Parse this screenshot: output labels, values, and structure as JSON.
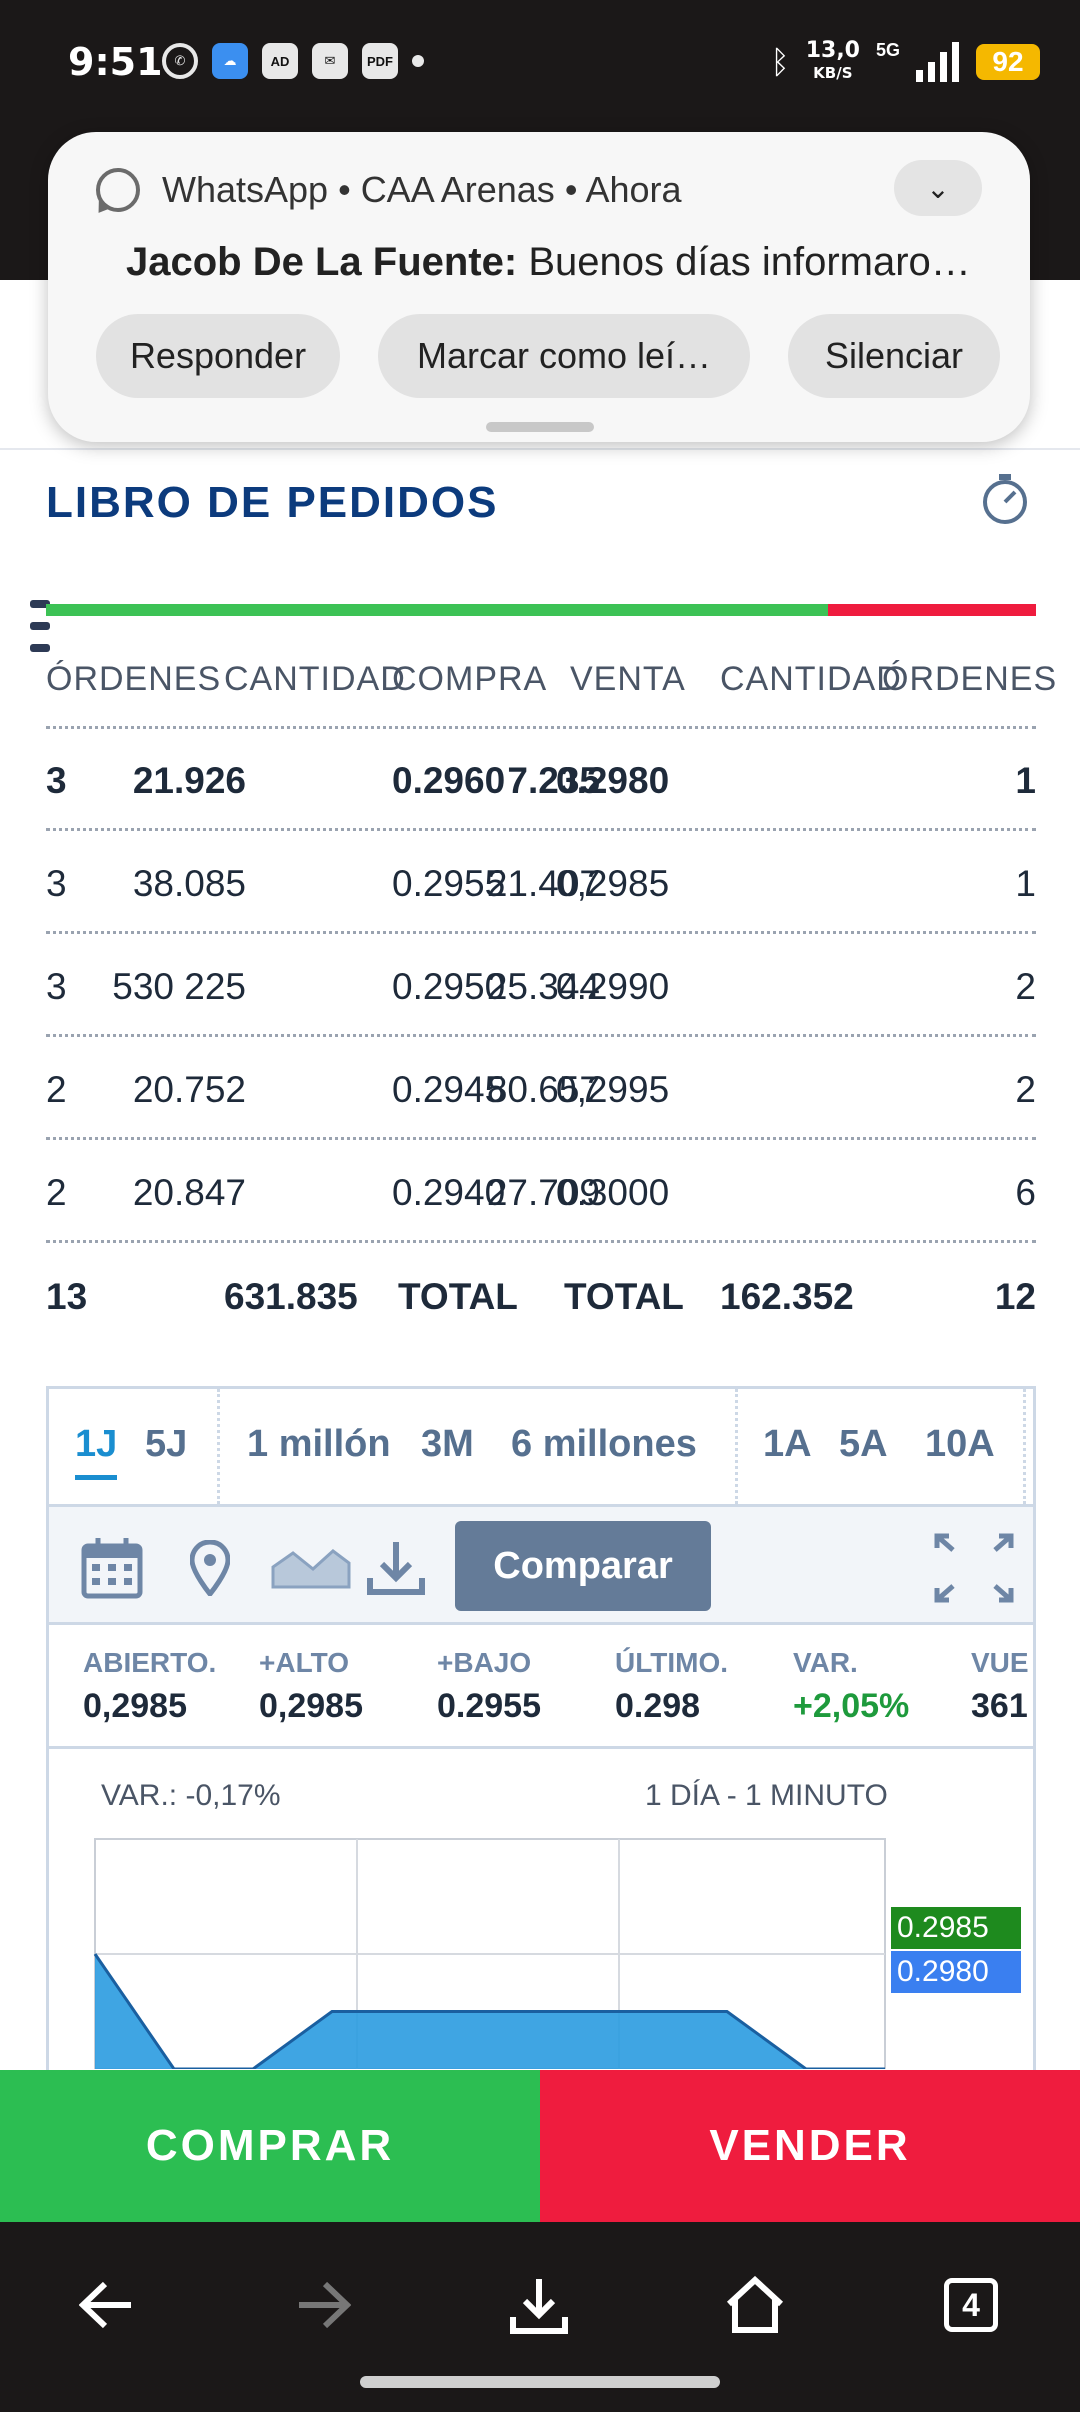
{
  "status_bar": {
    "time": "9:51",
    "app_icons": [
      "whatsapp-icon",
      "weather-icon",
      "ad-blocker-icon",
      "outlook-icon",
      "pdf-icon"
    ],
    "ad_icon_text": "AD",
    "pdf_icon_text": "PDF",
    "net_speed": "13,0",
    "net_unit": "KB/S",
    "network": "5G",
    "battery": "92"
  },
  "notification": {
    "app": "WhatsApp",
    "group": "CAA Arenas",
    "when": "Ahora",
    "sender": "Jacob De La Fuente:",
    "message": "Buenos días informaron",
    "actions": [
      "Responder",
      "Marcar como leí…",
      "Silenciar"
    ]
  },
  "order_book": {
    "title": "LIBRO DE PEDIDOS",
    "headers": [
      "ÓRDENES",
      "CANTIDAD",
      "COMPRA",
      "VENTA",
      "CANTIDAD",
      "ÓRDENES"
    ],
    "rows": [
      [
        "3",
        "21.926",
        "0.2960",
        "0.2980",
        "7.235",
        "1"
      ],
      [
        "3",
        "38.085",
        "0.2955",
        "0,2985",
        "21.407",
        "1"
      ],
      [
        "3",
        "530 225",
        "0.2950",
        "0.2990",
        "25.344",
        "2"
      ],
      [
        "2",
        "20.752",
        "0.2945",
        "0,2995",
        "80.657",
        "2"
      ],
      [
        "2",
        "20.847",
        "0.2940",
        "0.3000",
        "27.709",
        "6"
      ]
    ],
    "total": [
      "13",
      "631.835",
      "TOTAL",
      "TOTAL",
      "162.352",
      "12"
    ],
    "bid_share": 0.79
  },
  "chart_panel": {
    "ranges": [
      "1J",
      "5J",
      "1 millón",
      "3M",
      "6 millones",
      "1A",
      "5A",
      "10A"
    ],
    "active_range": "1J",
    "tools": [
      "calendar-icon",
      "map-pin-icon",
      "area-chart-icon",
      "download-icon"
    ],
    "compare_label": "Comparar",
    "stats": [
      {
        "label": "ABIERTO.",
        "value": "0,2985"
      },
      {
        "label": "+ALTO",
        "value": "0,2985"
      },
      {
        "label": "+BAJO",
        "value": "0.2955"
      },
      {
        "label": "ÚLTIMO.",
        "value": "0.298"
      },
      {
        "label": "VAR.",
        "value": "+2,05%"
      },
      {
        "label": "VUE",
        "value": "361"
      }
    ],
    "var_label": "VAR.: -0,17%",
    "period_label": "1 DÍA - 1 MINUTO",
    "price_tags": [
      {
        "value": "0.2985",
        "color": "#1e8a1e"
      },
      {
        "value": "0.2980",
        "color": "#3a7ff0"
      }
    ]
  },
  "chart_data": {
    "type": "area",
    "x": [
      0,
      1,
      2,
      3,
      4,
      5,
      6,
      7,
      8,
      9,
      10
    ],
    "y": [
      0.2985,
      0.297,
      0.2975,
      0.298,
      0.298,
      0.298,
      0.298,
      0.298,
      0.298,
      0.297,
      0.2975
    ],
    "ylim": [
      0.2975,
      0.2995
    ],
    "grid": true,
    "color": "#2a9be0"
  },
  "actions": {
    "buy": "COMPRAR",
    "sell": "VENDER"
  },
  "nav": {
    "tabs_count": "4",
    "icons": [
      "back-arrow-icon",
      "forward-arrow-icon",
      "download-icon",
      "home-icon",
      "tabs-icon"
    ]
  },
  "colors": {
    "bid": "#3cc255",
    "ask": "#ef1c3e",
    "title": "#0c3b7d",
    "accent": "#1a8ed0"
  }
}
